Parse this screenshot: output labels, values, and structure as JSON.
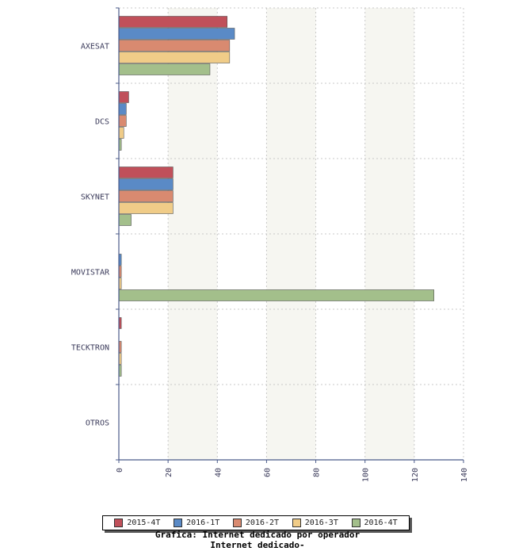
{
  "chart_data": {
    "type": "bar",
    "orientation": "horizontal",
    "categories": [
      "AXESAT",
      "DCS",
      "SKYNET",
      "MOVISTAR",
      "TECKTRON",
      "OTROS"
    ],
    "series": [
      {
        "name": "2015-4T",
        "color": "#c0505a",
        "values": [
          44,
          4,
          22,
          0,
          1,
          0
        ]
      },
      {
        "name": "2016-1T",
        "color": "#5a8ac6",
        "values": [
          47,
          3,
          22,
          1,
          0,
          0
        ]
      },
      {
        "name": "2016-2T",
        "color": "#d98a70",
        "values": [
          45,
          3,
          22,
          1,
          1,
          0
        ]
      },
      {
        "name": "2016-3T",
        "color": "#f0cc88",
        "values": [
          45,
          2,
          22,
          1,
          1,
          0
        ]
      },
      {
        "name": "2016-4T",
        "color": "#a3bf8b",
        "values": [
          37,
          1,
          5,
          128,
          1,
          0
        ]
      }
    ],
    "xlim": [
      0,
      140
    ],
    "xticks": [
      0,
      20,
      40,
      60,
      80,
      100,
      120,
      140
    ],
    "grid": true,
    "legend_position": "bottom",
    "title": "Grafica: Internet dedicado por operador",
    "subtitle": "Internet dedicado-"
  }
}
